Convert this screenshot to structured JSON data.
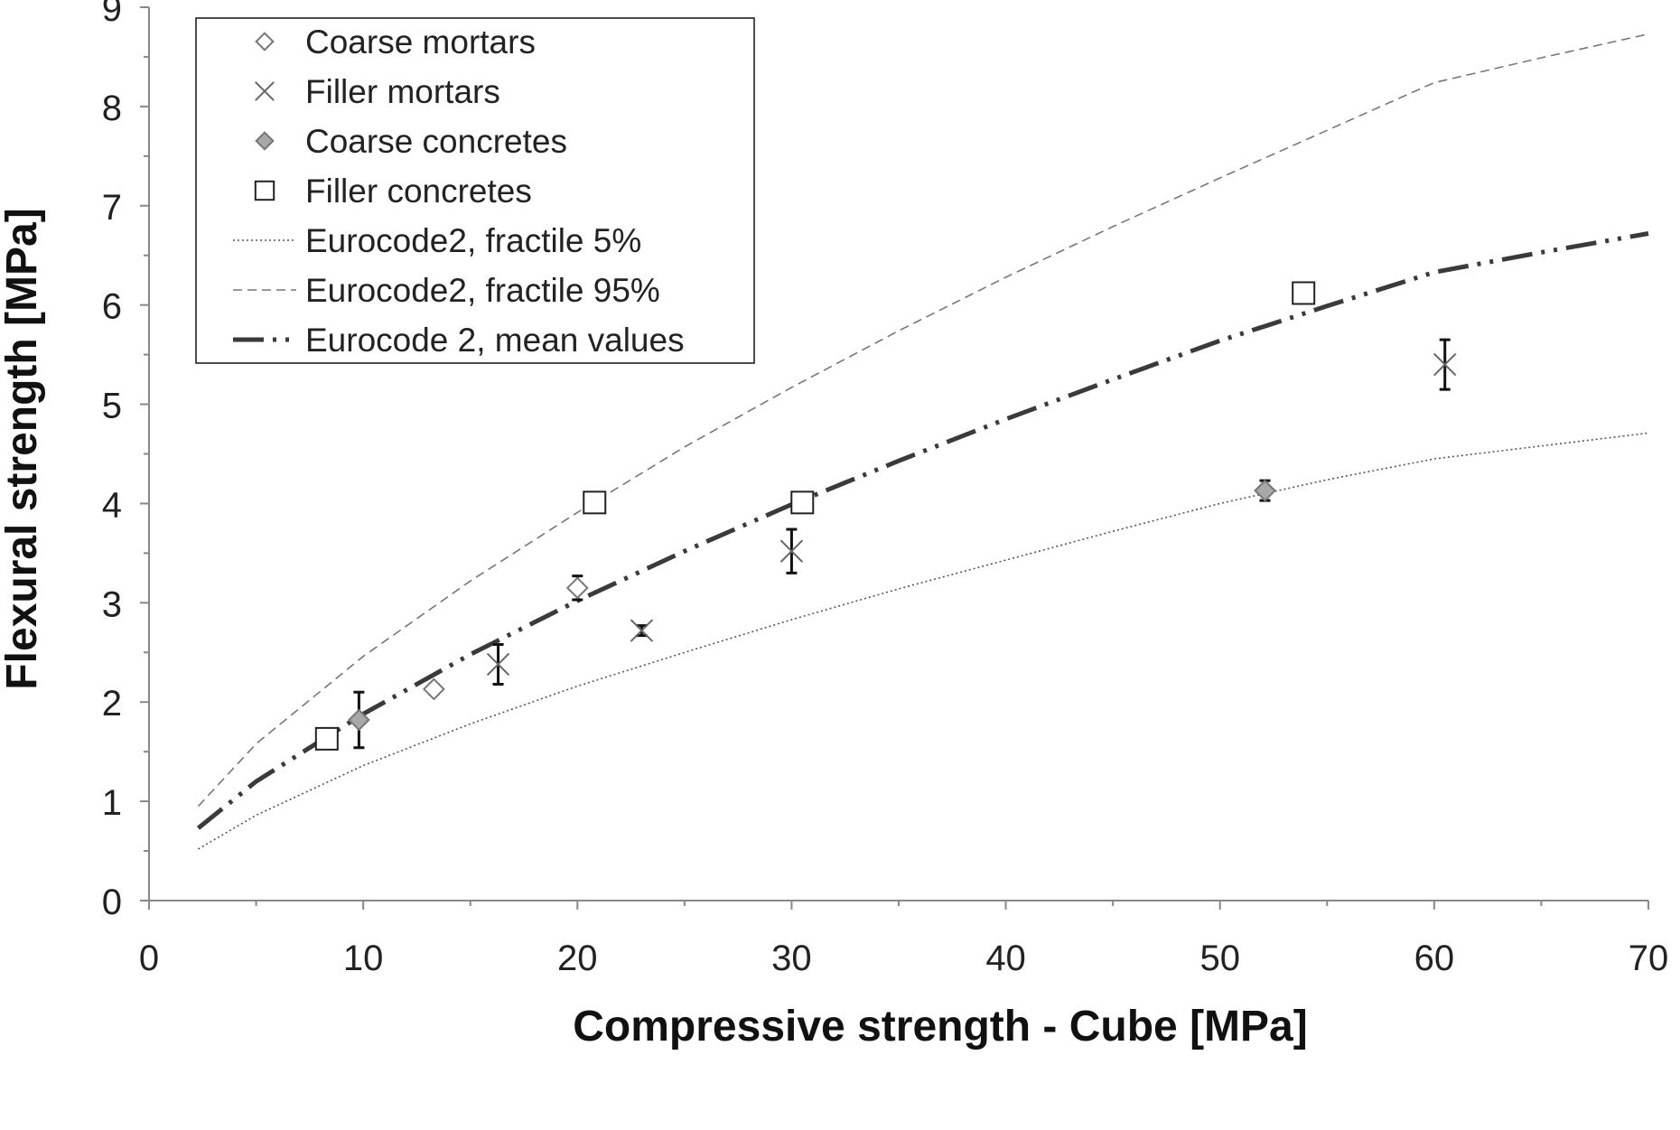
{
  "chart_data": {
    "type": "scatter",
    "title": "",
    "xlabel": "Compressive strength - Cube [MPa]",
    "ylabel": "Flexural strength [MPa]",
    "xlim": [
      0,
      70
    ],
    "ylim": [
      0,
      9
    ],
    "x_ticks": [
      "0",
      "10",
      "20",
      "30",
      "40",
      "50",
      "60",
      "70"
    ],
    "y_ticks": [
      "0",
      "1",
      "2",
      "3",
      "4",
      "5",
      "6",
      "7",
      "8",
      "9"
    ],
    "grid": false,
    "legend_position": "top-left",
    "legend": [
      "Coarse mortars",
      "Filler mortars",
      "Coarse concretes",
      "Filler concretes",
      "Eurocode2, fractile 5%",
      "Eurocode2, fractile 95%",
      "Eurocode 2, mean values"
    ],
    "series": [
      {
        "name": "Coarse mortars",
        "kind": "scatter",
        "marker": "diamond-open",
        "color": "#777777",
        "points": [
          {
            "x": 13.3,
            "y": 2.13,
            "err": 0.05
          },
          {
            "x": 20.0,
            "y": 3.15,
            "err": 0.12
          }
        ]
      },
      {
        "name": "Filler mortars",
        "kind": "scatter",
        "marker": "x",
        "color": "#666666",
        "points": [
          {
            "x": 16.3,
            "y": 2.38,
            "err": 0.2
          },
          {
            "x": 23.0,
            "y": 2.72,
            "err": 0.05
          },
          {
            "x": 30.0,
            "y": 3.52,
            "err": 0.22
          },
          {
            "x": 60.5,
            "y": 5.4,
            "err": 0.25
          }
        ]
      },
      {
        "name": "Coarse concretes",
        "kind": "scatter",
        "marker": "diamond-filled",
        "color": "#999999",
        "points": [
          {
            "x": 9.8,
            "y": 1.82,
            "err": 0.28
          },
          {
            "x": 52.1,
            "y": 4.13,
            "err": 0.1
          }
        ]
      },
      {
        "name": "Filler concretes",
        "kind": "scatter",
        "marker": "square-open",
        "color": "#222222",
        "points": [
          {
            "x": 8.3,
            "y": 1.63,
            "err": 0
          },
          {
            "x": 20.8,
            "y": 4.01,
            "err": 0
          },
          {
            "x": 30.5,
            "y": 4.01,
            "err": 0.1
          },
          {
            "x": 53.9,
            "y": 6.12,
            "err": 0
          }
        ]
      },
      {
        "name": "Eurocode2, fractile 5%",
        "kind": "line",
        "dash": "dotted",
        "color": "#555555",
        "x": [
          2.3,
          5,
          10,
          15,
          20,
          25,
          30,
          35,
          40,
          45,
          50,
          55,
          60,
          65,
          70
        ],
        "y": [
          0.52,
          0.86,
          1.36,
          1.78,
          2.16,
          2.5,
          2.83,
          3.14,
          3.43,
          3.72,
          4.0,
          4.24,
          4.45,
          4.58,
          4.71
        ]
      },
      {
        "name": "Eurocode2, fractile 95%",
        "kind": "line",
        "dash": "dashed",
        "color": "#777777",
        "x": [
          2.3,
          5,
          10,
          15,
          20,
          25,
          30,
          35,
          40,
          45,
          50,
          55,
          60,
          65,
          70
        ],
        "y": [
          0.95,
          1.58,
          2.46,
          3.22,
          3.91,
          4.57,
          5.17,
          5.74,
          6.28,
          6.79,
          7.28,
          7.76,
          8.24,
          8.49,
          8.73
        ]
      },
      {
        "name": "Eurocode 2, mean values",
        "kind": "line",
        "dash": "dash-dot-dot",
        "color": "#3a3a3a",
        "x": [
          2.3,
          5,
          10,
          15,
          20,
          25,
          30,
          35,
          40,
          45,
          50,
          55,
          60,
          65,
          70
        ],
        "y": [
          0.73,
          1.2,
          1.88,
          2.48,
          3.02,
          3.52,
          3.99,
          4.43,
          4.85,
          5.25,
          5.64,
          5.99,
          6.33,
          6.53,
          6.72
        ]
      }
    ]
  }
}
